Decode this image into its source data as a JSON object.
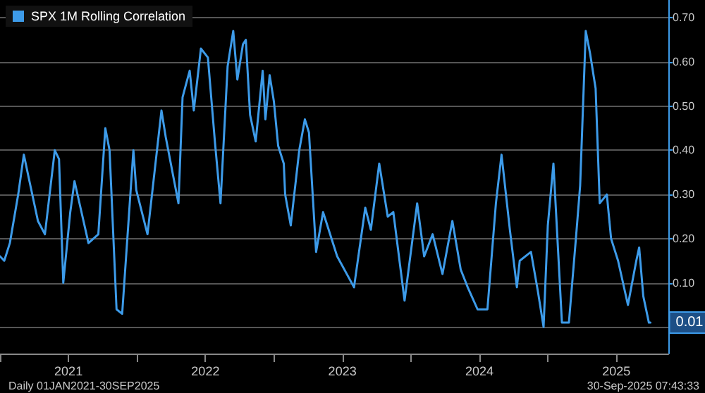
{
  "chart_data": {
    "type": "line",
    "x": [
      2021.0,
      2021.031,
      2021.072,
      2021.133,
      2021.174,
      2021.215,
      2021.277,
      2021.328,
      2021.4,
      2021.431,
      2021.462,
      2021.513,
      2021.544,
      2021.646,
      2021.718,
      2021.769,
      2021.8,
      2021.851,
      2021.892,
      2021.974,
      2021.995,
      2022.077,
      2022.179,
      2022.21,
      2022.303,
      2022.333,
      2022.385,
      2022.415,
      2022.467,
      2022.518,
      2022.569,
      2022.61,
      2022.662,
      2022.703,
      2022.733,
      2022.774,
      2022.795,
      2022.826,
      2022.867,
      2022.918,
      2022.938,
      2022.969,
      2023.0,
      2023.031,
      2023.072,
      2023.082,
      2023.123,
      2023.185,
      2023.226,
      2023.256,
      2023.308,
      2023.359,
      2023.462,
      2023.585,
      2023.667,
      2023.708,
      2023.769,
      2023.831,
      2023.872,
      2023.954,
      2024.046,
      2024.097,
      2024.159,
      2024.231,
      2024.303,
      2024.364,
      2024.415,
      2024.487,
      2024.559,
      2024.621,
      2024.662,
      2024.723,
      2024.774,
      2024.795,
      2024.877,
      2024.928,
      2024.969,
      2025.0,
      2025.041,
      2025.103,
      2025.154,
      2025.205,
      2025.236,
      2025.277,
      2025.308,
      2025.349,
      2025.379,
      2025.431,
      2025.462,
      2025.513,
      2025.585,
      2025.646,
      2025.667,
      2025.697,
      2025.738,
      2025.749
    ],
    "series": [
      {
        "name": "SPX 1M Rolling Correlation",
        "color": "#3d9be9",
        "values": [
          0.16,
          0.15,
          0.19,
          0.3,
          0.39,
          0.33,
          0.24,
          0.21,
          0.4,
          0.38,
          0.1,
          0.26,
          0.33,
          0.19,
          0.21,
          0.45,
          0.4,
          0.04,
          0.03,
          0.4,
          0.31,
          0.21,
          0.49,
          0.43,
          0.28,
          0.52,
          0.58,
          0.49,
          0.63,
          0.61,
          0.42,
          0.28,
          0.59,
          0.67,
          0.56,
          0.64,
          0.65,
          0.48,
          0.42,
          0.58,
          0.47,
          0.57,
          0.51,
          0.41,
          0.37,
          0.3,
          0.23,
          0.4,
          0.47,
          0.44,
          0.17,
          0.26,
          0.16,
          0.09,
          0.27,
          0.22,
          0.37,
          0.25,
          0.26,
          0.06,
          0.28,
          0.16,
          0.21,
          0.12,
          0.24,
          0.13,
          0.09,
          0.04,
          0.04,
          0.28,
          0.39,
          0.22,
          0.09,
          0.15,
          0.17,
          0.08,
          0.0,
          0.23,
          0.37,
          0.01,
          0.01,
          0.2,
          0.32,
          0.67,
          0.62,
          0.54,
          0.28,
          0.3,
          0.2,
          0.15,
          0.05,
          0.15,
          0.18,
          0.07,
          0.01,
          0.01
        ],
        "value_labels": [
          null,
          null,
          null,
          null,
          null,
          null,
          null,
          null,
          null,
          null,
          null,
          null,
          null,
          null,
          null,
          null,
          null,
          null,
          null,
          null,
          null,
          null,
          null,
          null,
          null,
          null,
          null,
          null,
          null,
          null,
          null,
          null,
          null,
          null,
          null,
          null,
          null,
          null,
          null,
          null,
          null,
          null,
          null,
          null,
          null,
          null,
          null,
          null,
          null,
          null,
          null,
          null,
          null,
          null,
          null,
          null,
          null,
          null,
          null,
          null,
          null,
          null,
          null,
          null,
          null,
          null,
          null,
          null,
          null,
          null,
          null,
          null,
          null,
          null,
          null,
          null,
          null,
          null,
          null,
          null,
          null,
          null,
          null,
          null,
          null,
          null,
          null,
          null,
          null,
          null,
          null,
          null,
          null,
          null,
          null,
          "0.01"
        ]
      }
    ],
    "xlim": [
      2021.0,
      2025.88
    ],
    "xticks": [
      {
        "value": 2021,
        "label": null
      },
      {
        "value": 2021.5,
        "label": "2021"
      },
      {
        "value": 2022,
        "label": null
      },
      {
        "value": 2022.5,
        "label": "2022"
      },
      {
        "value": 2023,
        "label": null
      },
      {
        "value": 2023.5,
        "label": "2023"
      },
      {
        "value": 2024,
        "label": null
      },
      {
        "value": 2024.5,
        "label": "2024"
      },
      {
        "value": 2025,
        "label": null
      },
      {
        "value": 2025.5,
        "label": "2025"
      }
    ],
    "ylim": [
      -0.06,
      0.74
    ],
    "yticks": [
      {
        "value": 0,
        "label": null
      },
      {
        "value": 0.1,
        "label": "0.10"
      },
      {
        "value": 0.2,
        "label": "0.20"
      },
      {
        "value": 0.3,
        "label": "0.30"
      },
      {
        "value": 0.4,
        "label": "0.40"
      },
      {
        "value": 0.5,
        "label": "0.50"
      },
      {
        "value": 0.6,
        "label": "0.60"
      },
      {
        "value": 0.7,
        "label": "0.70"
      }
    ],
    "grid": "y",
    "legend": "top left",
    "marker": "none",
    "line_style": "solid",
    "annotations": [
      "Daily 01JAN2021-30SEP2025",
      "30-Sep-2025 07:43:33"
    ]
  }
}
